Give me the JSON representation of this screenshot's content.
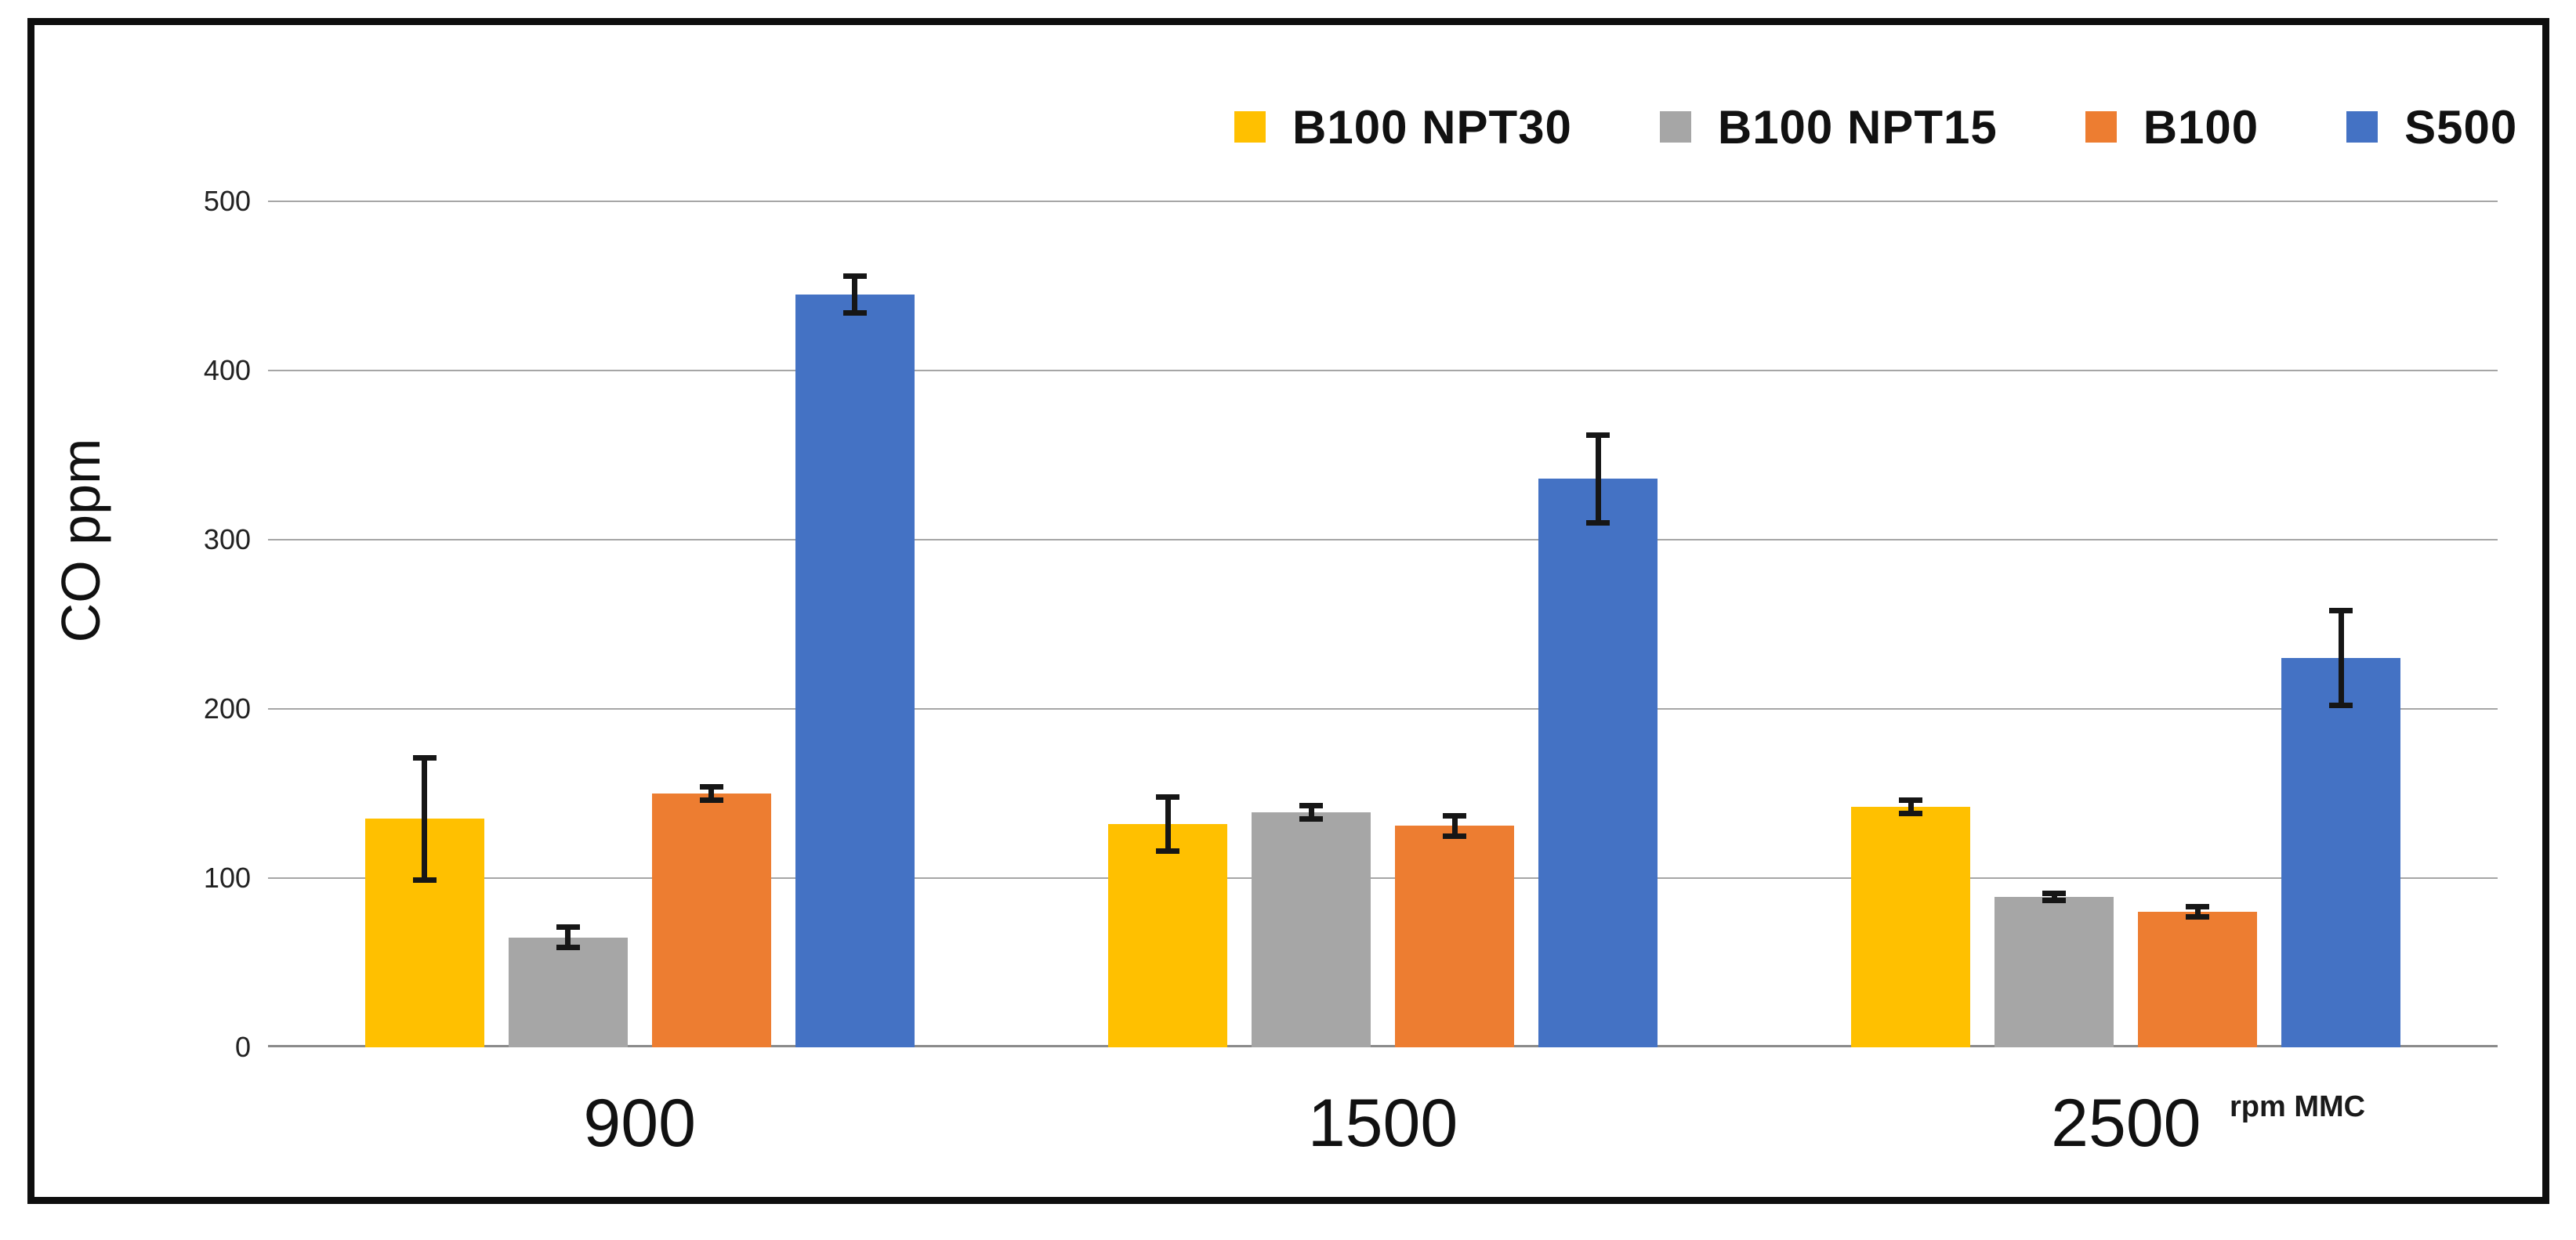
{
  "chart_data": {
    "type": "bar",
    "title": "",
    "ylabel": "CO ppm",
    "x_unit_label": "rpm MMC",
    "categories": [
      "900",
      "1500",
      "2500"
    ],
    "y_ticks": [
      0,
      100,
      200,
      300,
      400,
      500
    ],
    "ylim": [
      0,
      500
    ],
    "grid": "horizontal-only",
    "legend_position": "top",
    "error_bars": true,
    "series": [
      {
        "name": "B100 NPT30",
        "color": "#FFC000",
        "values": [
          135,
          132,
          142
        ],
        "errors": [
          36,
          16,
          4
        ]
      },
      {
        "name": "B100 NPT15",
        "color": "#A6A6A6",
        "values": [
          65,
          139,
          89
        ],
        "errors": [
          6,
          4,
          2
        ]
      },
      {
        "name": "B100",
        "color": "#ED7D31",
        "values": [
          150,
          131,
          80
        ],
        "errors": [
          4,
          6,
          3
        ]
      },
      {
        "name": "S500",
        "color": "#4472C4",
        "values": [
          445,
          336,
          230
        ],
        "errors": [
          11,
          26,
          28
        ]
      }
    ]
  },
  "colors": {
    "background": "#ffffff",
    "frame": "#0e0e0e",
    "gridline": "#a6a6a6",
    "zero_axis": "#8a8a8a",
    "error_bar": "#161616",
    "text": "#111111"
  }
}
